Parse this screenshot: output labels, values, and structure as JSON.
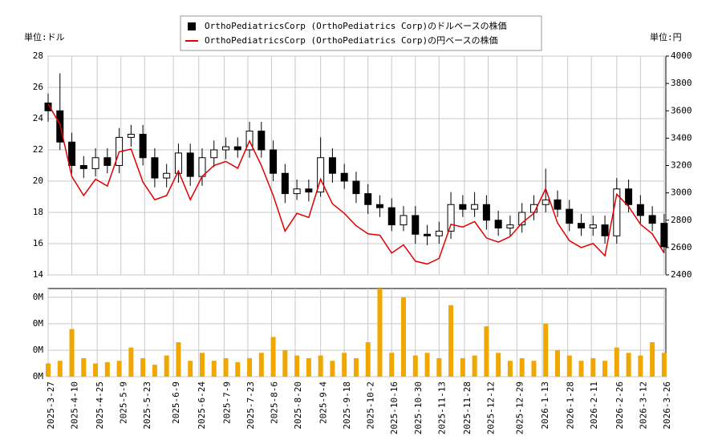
{
  "chart_data": [
    {
      "type": "candlestick",
      "y_unit_label": "単位:ドル",
      "y2_unit_label": "単位:円",
      "x": [
        "2025-3-27",
        "2025-4-3",
        "2025-4-10",
        "2025-4-17",
        "2025-4-24",
        "2025-5-1",
        "2025-5-8",
        "2025-5-15",
        "2025-5-22",
        "2025-5-29",
        "2025-6-5",
        "2025-6-12",
        "2025-6-19",
        "2025-6-26",
        "2025-7-3",
        "2025-7-10",
        "2025-7-17",
        "2025-7-24",
        "2025-7-31",
        "2025-8-7",
        "2025-8-14",
        "2025-8-21",
        "2025-8-28",
        "2025-9-4",
        "2025-9-11",
        "2025-9-18",
        "2025-9-25",
        "2025-10-2",
        "2025-10-9",
        "2025-10-16",
        "2025-10-23",
        "2025-10-30",
        "2025-11-6",
        "2025-11-13",
        "2025-11-20",
        "2025-11-27",
        "2025-12-4",
        "2025-12-11",
        "2025-12-18",
        "2025-12-25",
        "2026-1-1",
        "2026-1-8",
        "2026-1-15",
        "2026-1-22",
        "2026-1-29",
        "2026-2-5",
        "2026-2-12",
        "2026-2-19",
        "2026-2-26",
        "2026-3-5",
        "2026-3-12",
        "2026-3-19",
        "2026-3-26"
      ],
      "xlim": [
        "2025-3-27",
        "2026-3-27"
      ],
      "ylim": [
        14,
        28
      ],
      "yticks": [
        14,
        16,
        18,
        20,
        22,
        24,
        26,
        28
      ],
      "y2lim": [
        2400,
        4000
      ],
      "y2ticks": [
        2400,
        2600,
        2800,
        3000,
        3200,
        3400,
        3600,
        3800,
        4000
      ],
      "grid": true,
      "series": [
        {
          "name": "OrthoPediatricsCorp (OrthoPediatrics Corp)のドルベースの株価",
          "color": "#000000",
          "open": [
            25.0,
            24.5,
            22.5,
            21.0,
            20.8,
            21.5,
            21.0,
            22.8,
            23.0,
            21.5,
            20.2,
            20.5,
            21.8,
            20.3,
            21.5,
            22.0,
            22.2,
            22.0,
            23.2,
            22.0,
            20.5,
            19.2,
            19.5,
            19.3,
            21.5,
            20.5,
            20.0,
            19.2,
            18.5,
            18.3,
            17.2,
            17.8,
            16.6,
            16.5,
            16.8,
            18.5,
            18.2,
            18.5,
            17.5,
            17.0,
            17.2,
            18.0,
            18.5,
            18.8,
            18.2,
            17.3,
            17.0,
            17.2,
            16.5,
            19.5,
            18.5,
            17.8,
            17.3
          ],
          "high": [
            25.6,
            26.9,
            23.1,
            21.6,
            22.1,
            22.1,
            23.4,
            23.6,
            23.6,
            22.1,
            21.1,
            22.4,
            22.4,
            22.1,
            22.6,
            22.8,
            22.8,
            23.8,
            23.8,
            22.6,
            21.1,
            20.1,
            20.1,
            22.8,
            22.1,
            21.1,
            20.6,
            19.8,
            19.1,
            18.9,
            18.4,
            18.4,
            17.2,
            17.4,
            19.3,
            19.1,
            19.3,
            19.1,
            18.1,
            17.8,
            18.6,
            19.1,
            20.8,
            19.4,
            18.8,
            17.9,
            17.8,
            17.8,
            20.2,
            20.1,
            19.1,
            18.4,
            17.9
          ],
          "low": [
            23.8,
            22.0,
            20.5,
            20.2,
            20.3,
            20.5,
            20.5,
            22.2,
            21.0,
            19.6,
            19.6,
            19.9,
            19.7,
            19.7,
            20.9,
            21.4,
            21.5,
            21.5,
            21.5,
            20.0,
            18.6,
            18.8,
            18.7,
            19.0,
            19.9,
            19.5,
            18.6,
            17.9,
            17.7,
            16.8,
            16.8,
            16.0,
            15.9,
            16.0,
            16.3,
            17.7,
            17.7,
            16.9,
            16.5,
            16.5,
            16.7,
            17.5,
            18.0,
            17.7,
            16.8,
            16.5,
            16.5,
            16.0,
            16.0,
            18.0,
            17.3,
            16.8,
            15.4
          ],
          "close": [
            24.5,
            22.5,
            21.0,
            20.8,
            21.5,
            21.0,
            22.8,
            23.0,
            21.5,
            20.2,
            20.5,
            21.8,
            20.3,
            21.5,
            22.0,
            22.2,
            22.0,
            23.2,
            22.0,
            20.5,
            19.2,
            19.5,
            19.3,
            21.5,
            20.5,
            20.0,
            19.2,
            18.5,
            18.3,
            17.2,
            17.8,
            16.6,
            16.5,
            16.8,
            18.5,
            18.2,
            18.5,
            17.5,
            17.0,
            17.2,
            18.0,
            18.5,
            18.8,
            18.2,
            17.3,
            17.0,
            17.2,
            16.5,
            19.5,
            18.5,
            17.8,
            17.3,
            15.8
          ]
        },
        {
          "name": "OrthoPediatricsCorp (OrthoPediatrics Corp)の円ベースの株価",
          "color": "#e00000",
          "axis": "y2",
          "values": [
            3650,
            3500,
            3120,
            2980,
            3100,
            3050,
            3300,
            3320,
            3080,
            2950,
            2980,
            3160,
            2950,
            3120,
            3200,
            3230,
            3180,
            3380,
            3200,
            2980,
            2720,
            2850,
            2820,
            3100,
            2920,
            2850,
            2760,
            2700,
            2690,
            2560,
            2620,
            2500,
            2480,
            2520,
            2770,
            2750,
            2790,
            2670,
            2640,
            2680,
            2780,
            2850,
            3030,
            2780,
            2650,
            2600,
            2630,
            2540,
            2990,
            2900,
            2770,
            2700,
            2560
          ]
        }
      ]
    },
    {
      "type": "bar",
      "color": "#f0a800",
      "ylim": [
        0,
        333000
      ],
      "yticks": [
        {
          "value": 0,
          "label": "0M"
        },
        {
          "value": 100000,
          "label": "0M"
        },
        {
          "value": 200000,
          "label": "0M"
        },
        {
          "value": 300000,
          "label": "0M"
        }
      ],
      "xticks": [
        "2025-3-27",
        "2025-4-10",
        "2025-4-25",
        "2025-5-9",
        "2025-5-23",
        "2025-6-9",
        "2025-6-24",
        "2025-7-9",
        "2025-7-23",
        "2025-8-6",
        "2025-8-20",
        "2025-9-4",
        "2025-9-18",
        "2025-10-2",
        "2025-10-16",
        "2025-10-30",
        "2025-11-13",
        "2025-11-28",
        "2025-12-12",
        "2025-12-29",
        "2026-1-13",
        "2026-1-28",
        "2026-2-11",
        "2026-2-26",
        "2026-3-12",
        "2026-3-26"
      ],
      "values": [
        50000,
        60000,
        180000,
        70000,
        50000,
        55000,
        60000,
        110000,
        70000,
        45000,
        80000,
        130000,
        60000,
        90000,
        60000,
        70000,
        55000,
        70000,
        90000,
        150000,
        100000,
        80000,
        70000,
        80000,
        60000,
        90000,
        70000,
        130000,
        340000,
        90000,
        300000,
        80000,
        90000,
        70000,
        270000,
        70000,
        80000,
        190000,
        90000,
        60000,
        70000,
        60000,
        200000,
        100000,
        80000,
        60000,
        70000,
        60000,
        110000,
        90000,
        80000,
        130000,
        90000
      ]
    }
  ]
}
